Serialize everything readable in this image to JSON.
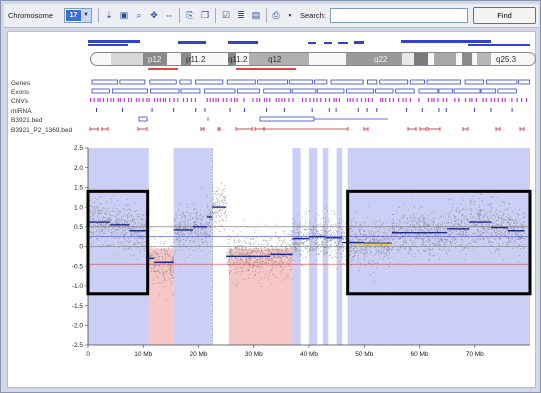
{
  "toolbar": {
    "chromosome_label": "Chromosome",
    "chromosome_value": "17",
    "search_label": "Search:",
    "search_value": "",
    "find_label": "Find",
    "tools": [
      "pin-icon",
      "select-region-icon",
      "zoom-icon",
      "pan-icon",
      "fit-icon",
      "export-icon",
      "copy-icon",
      "check-icon",
      "table-icon",
      "grid-icon",
      "print-icon",
      "save-icon",
      "sort-icon"
    ]
  },
  "ideogram": {
    "bands": [
      "p12",
      "p11.2",
      "q11.2",
      "q12",
      "q22",
      "q25.3"
    ]
  },
  "tracks": {
    "labels": [
      "Genes",
      "Exons",
      "CNVs",
      "miRNA",
      "B3921.bed",
      "B3921_P2_1369.bed"
    ]
  },
  "chart_data": {
    "type": "scatter",
    "title": "",
    "xlabel": "",
    "ylabel": "",
    "xlim": [
      0,
      80
    ],
    "ylim": [
      -2.5,
      2.5
    ],
    "x_ticks": [
      "0",
      "10 Mb",
      "20 Mb",
      "30 Mb",
      "40 Mb",
      "50 Mb",
      "60 Mb",
      "70 Mb"
    ],
    "x_tick_values": [
      0,
      10,
      20,
      30,
      40,
      50,
      60,
      70
    ],
    "y_ticks": [
      "2.5",
      "2.0",
      "1.5",
      "1.0",
      "0.5",
      "0",
      "-0.5",
      "-1.0",
      "-1.5",
      "-2.0",
      "-2.5"
    ],
    "y_tick_values": [
      2.5,
      2.0,
      1.5,
      1.0,
      0.5,
      0,
      -0.5,
      -1.0,
      -1.5,
      -2.0,
      -2.5
    ],
    "reference_lines": [
      {
        "y": 0.5,
        "color": "#6a6a6a"
      },
      {
        "y": 0.25,
        "color": "#4a55e0"
      },
      {
        "y": 0,
        "color": "#6a6a6a"
      },
      {
        "y": -0.45,
        "color": "#d04545"
      }
    ],
    "gain_regions": [
      [
        0,
        11
      ],
      [
        15.5,
        22.5
      ],
      [
        37,
        38.5
      ],
      [
        40,
        41.5
      ],
      [
        42.5,
        43.5
      ],
      [
        45,
        46
      ],
      [
        47,
        55
      ],
      [
        55,
        80
      ]
    ],
    "loss_regions": [
      [
        11,
        15.5
      ],
      [
        25.5,
        37
      ]
    ],
    "segments": [
      {
        "x0": 0,
        "x1": 4,
        "y": 0.62
      },
      {
        "x0": 4,
        "x1": 7.5,
        "y": 0.55
      },
      {
        "x0": 7.5,
        "x1": 10.5,
        "y": 0.4
      },
      {
        "x0": 10.5,
        "x1": 12,
        "y": -0.3
      },
      {
        "x0": 12,
        "x1": 15.5,
        "y": -0.4
      },
      {
        "x0": 15.5,
        "x1": 19,
        "y": 0.42
      },
      {
        "x0": 19,
        "x1": 21.5,
        "y": 0.5
      },
      {
        "x0": 21.5,
        "x1": 22.5,
        "y": 0.75
      },
      {
        "x0": 22.5,
        "x1": 25,
        "y": 1.0
      },
      {
        "x0": 25,
        "x1": 33,
        "y": -0.25
      },
      {
        "x0": 33,
        "x1": 37,
        "y": -0.2
      },
      {
        "x0": 37,
        "x1": 40,
        "y": 0.2
      },
      {
        "x0": 40,
        "x1": 43,
        "y": 0.25
      },
      {
        "x0": 43,
        "x1": 46,
        "y": 0.22
      },
      {
        "x0": 46,
        "x1": 50,
        "y": 0.1
      },
      {
        "x0": 50,
        "x1": 55,
        "y": 0.08
      },
      {
        "x0": 55,
        "x1": 65,
        "y": 0.35
      },
      {
        "x0": 65,
        "x1": 69,
        "y": 0.45
      },
      {
        "x0": 69,
        "x1": 73,
        "y": 0.62
      },
      {
        "x0": 73,
        "x1": 76,
        "y": 0.48
      },
      {
        "x0": 76,
        "x1": 79,
        "y": 0.4
      }
    ],
    "highlight_boxes": [
      {
        "x0": 0,
        "x1": 10.8,
        "y0": -1.2,
        "y1": 1.4
      },
      {
        "x0": 47,
        "x1": 80,
        "y0": -1.2,
        "y1": 1.4
      }
    ],
    "colors": {
      "gain": "#b9bff2",
      "loss": "#f3b9b9",
      "points": "#7d7d7d",
      "segment": "#1e2a8a",
      "box": "#000000",
      "marker": "#888888"
    }
  }
}
